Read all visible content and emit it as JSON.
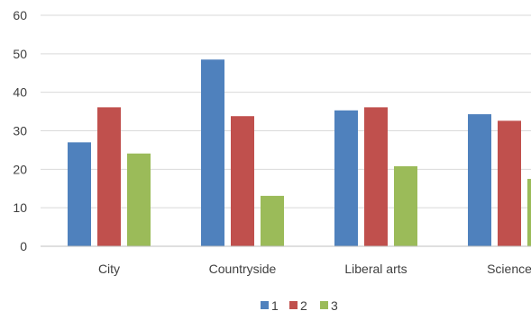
{
  "chart_data": {
    "type": "bar",
    "categories": [
      "City",
      "Countryside",
      "Liberal arts",
      "Science"
    ],
    "series": [
      {
        "name": "1",
        "color": "#4f81bd",
        "values": [
          27,
          48.5,
          35.3,
          34.3
        ]
      },
      {
        "name": "2",
        "color": "#c0504d",
        "values": [
          36.1,
          33.8,
          36.1,
          32.6
        ]
      },
      {
        "name": "3",
        "color": "#9bbb59",
        "values": [
          24.1,
          13.1,
          20.8,
          17.5
        ]
      }
    ],
    "title": "",
    "xlabel": "",
    "ylabel": "",
    "ylim": [
      0,
      60
    ],
    "yticks": [
      0,
      10,
      20,
      30,
      40,
      50,
      60
    ],
    "grid": true,
    "legend": "bottom"
  }
}
